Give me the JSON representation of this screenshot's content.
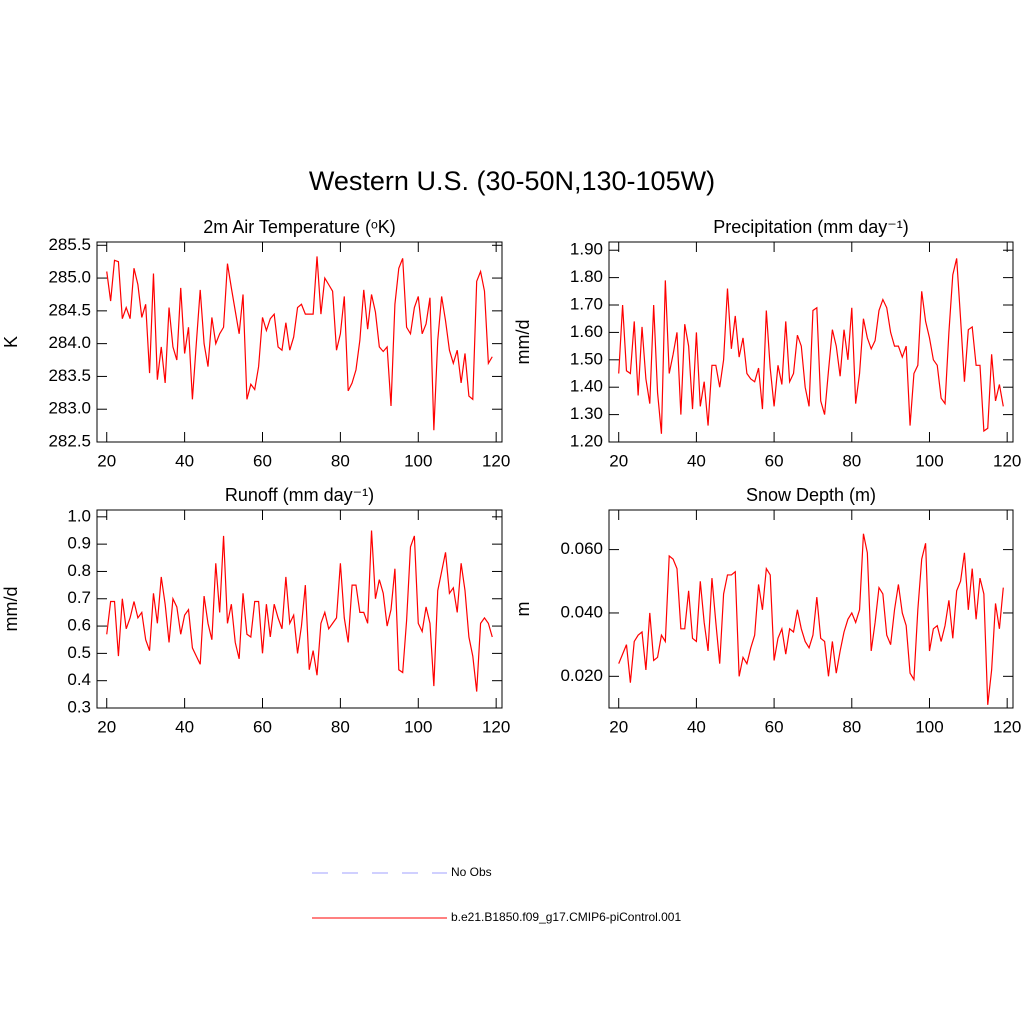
{
  "title": "Western U.S. (30-50N,130-105W)",
  "legend": [
    {
      "name": "No Obs",
      "color": "#a0a0ff",
      "dash": true
    },
    {
      "name": "b.e21.B1850.f09_g17.CMIP6-piControl.001",
      "color": "#ff0000",
      "dash": false
    }
  ],
  "chart_data": [
    {
      "type": "line",
      "title": "2m Air Temperature (ᵒK)",
      "y_label": "K",
      "color": "#ff0000",
      "x": [
        20,
        21,
        22,
        23,
        24,
        25,
        26,
        27,
        28,
        29,
        30,
        31,
        32,
        33,
        34,
        35,
        36,
        37,
        38,
        39,
        40,
        41,
        42,
        43,
        44,
        45,
        46,
        47,
        48,
        49,
        50,
        51,
        52,
        53,
        54,
        55,
        56,
        57,
        58,
        59,
        60,
        61,
        62,
        63,
        64,
        65,
        66,
        67,
        68,
        69,
        70,
        71,
        72,
        73,
        74,
        75,
        76,
        77,
        78,
        79,
        80,
        81,
        82,
        83,
        84,
        85,
        86,
        87,
        88,
        89,
        90,
        91,
        92,
        93,
        94,
        95,
        96,
        97,
        98,
        99,
        100,
        101,
        102,
        103,
        104,
        105,
        106,
        107,
        108,
        109,
        110,
        111,
        112,
        113,
        114,
        115,
        116,
        117,
        118,
        119
      ],
      "values": [
        285.1,
        284.65,
        285.27,
        285.25,
        284.38,
        284.55,
        284.38,
        285.15,
        284.9,
        284.4,
        284.6,
        283.55,
        285.07,
        283.45,
        283.95,
        283.4,
        284.55,
        283.95,
        283.75,
        284.85,
        283.85,
        284.25,
        283.15,
        284.0,
        284.82,
        284.0,
        283.65,
        284.4,
        284.0,
        284.15,
        284.25,
        285.22,
        284.85,
        284.5,
        284.15,
        284.75,
        283.15,
        283.38,
        283.3,
        283.65,
        284.4,
        284.2,
        284.38,
        284.45,
        283.95,
        283.9,
        284.32,
        283.9,
        284.1,
        284.55,
        284.6,
        284.45,
        284.45,
        284.45,
        285.33,
        284.45,
        285.0,
        284.9,
        284.8,
        283.9,
        284.15,
        284.72,
        283.28,
        283.4,
        283.6,
        284.05,
        284.82,
        284.22,
        284.75,
        284.48,
        283.95,
        283.88,
        283.95,
        283.05,
        284.6,
        285.15,
        285.3,
        284.25,
        284.15,
        284.55,
        284.72,
        284.15,
        284.3,
        284.7,
        282.68,
        284.05,
        284.72,
        284.35,
        283.9,
        283.7,
        283.9,
        283.4,
        283.85,
        283.2,
        283.15,
        284.95,
        285.1,
        284.8,
        283.7,
        283.8
      ],
      "xlim": [
        17.5,
        121.5
      ],
      "xticks": [
        20,
        40,
        60,
        80,
        100,
        120
      ],
      "ylim": [
        282.5,
        285.55
      ],
      "yticks": [
        282.5,
        {
          "value": 283,
          "label": "283.0"
        },
        283.5,
        {
          "value": 284,
          "label": "284.0"
        },
        284.5,
        {
          "value": 285,
          "label": "285.0"
        },
        285.5
      ]
    },
    {
      "type": "line",
      "title": "Precipitation (mm day⁻¹)",
      "y_label": "mm/d",
      "color": "#ff0000",
      "x": [
        20,
        21,
        22,
        23,
        24,
        25,
        26,
        27,
        28,
        29,
        30,
        31,
        32,
        33,
        34,
        35,
        36,
        37,
        38,
        39,
        40,
        41,
        42,
        43,
        44,
        45,
        46,
        47,
        48,
        49,
        50,
        51,
        52,
        53,
        54,
        55,
        56,
        57,
        58,
        59,
        60,
        61,
        62,
        63,
        64,
        65,
        66,
        67,
        68,
        69,
        70,
        71,
        72,
        73,
        74,
        75,
        76,
        77,
        78,
        79,
        80,
        81,
        82,
        83,
        84,
        85,
        86,
        87,
        88,
        89,
        90,
        91,
        92,
        93,
        94,
        95,
        96,
        97,
        98,
        99,
        100,
        101,
        102,
        103,
        104,
        105,
        106,
        107,
        108,
        109,
        110,
        111,
        112,
        113,
        114,
        115,
        116,
        117,
        118,
        119
      ],
      "values": [
        1.45,
        1.7,
        1.46,
        1.45,
        1.64,
        1.37,
        1.62,
        1.43,
        1.34,
        1.7,
        1.38,
        1.23,
        1.79,
        1.45,
        1.52,
        1.6,
        1.3,
        1.63,
        1.55,
        1.32,
        1.6,
        1.33,
        1.42,
        1.26,
        1.48,
        1.48,
        1.4,
        1.5,
        1.76,
        1.54,
        1.66,
        1.51,
        1.58,
        1.45,
        1.43,
        1.42,
        1.47,
        1.32,
        1.68,
        1.47,
        1.33,
        1.48,
        1.41,
        1.64,
        1.42,
        1.45,
        1.59,
        1.55,
        1.4,
        1.33,
        1.68,
        1.69,
        1.35,
        1.3,
        1.46,
        1.61,
        1.55,
        1.44,
        1.61,
        1.5,
        1.69,
        1.34,
        1.45,
        1.65,
        1.58,
        1.54,
        1.57,
        1.68,
        1.72,
        1.69,
        1.6,
        1.55,
        1.55,
        1.51,
        1.55,
        1.26,
        1.45,
        1.48,
        1.75,
        1.64,
        1.58,
        1.5,
        1.48,
        1.36,
        1.34,
        1.6,
        1.81,
        1.87,
        1.65,
        1.42,
        1.61,
        1.62,
        1.48,
        1.48,
        1.24,
        1.25,
        1.52,
        1.35,
        1.41,
        1.33
      ],
      "xlim": [
        17.5,
        121.5
      ],
      "xticks": [
        20,
        40,
        60,
        80,
        100,
        120
      ],
      "ylim": [
        1.2,
        1.93
      ],
      "yticks": [
        {
          "value": 1.2,
          "label": "1.20"
        },
        {
          "value": 1.3,
          "label": "1.30"
        },
        {
          "value": 1.4,
          "label": "1.40"
        },
        {
          "value": 1.5,
          "label": "1.50"
        },
        {
          "value": 1.6,
          "label": "1.60"
        },
        {
          "value": 1.7,
          "label": "1.70"
        },
        {
          "value": 1.8,
          "label": "1.80"
        },
        {
          "value": 1.9,
          "label": "1.90"
        }
      ]
    },
    {
      "type": "line",
      "title": "Runoff (mm day⁻¹)",
      "y_label": "mm/d",
      "color": "#ff0000",
      "x": [
        20,
        21,
        22,
        23,
        24,
        25,
        26,
        27,
        28,
        29,
        30,
        31,
        32,
        33,
        34,
        35,
        36,
        37,
        38,
        39,
        40,
        41,
        42,
        43,
        44,
        45,
        46,
        47,
        48,
        49,
        50,
        51,
        52,
        53,
        54,
        55,
        56,
        57,
        58,
        59,
        60,
        61,
        62,
        63,
        64,
        65,
        66,
        67,
        68,
        69,
        70,
        71,
        72,
        73,
        74,
        75,
        76,
        77,
        78,
        79,
        80,
        81,
        82,
        83,
        84,
        85,
        86,
        87,
        88,
        89,
        90,
        91,
        92,
        93,
        94,
        95,
        96,
        97,
        98,
        99,
        100,
        101,
        102,
        103,
        104,
        105,
        106,
        107,
        108,
        109,
        110,
        111,
        112,
        113,
        114,
        115,
        116,
        117,
        118,
        119
      ],
      "values": [
        0.57,
        0.69,
        0.69,
        0.49,
        0.7,
        0.59,
        0.63,
        0.69,
        0.63,
        0.65,
        0.55,
        0.51,
        0.72,
        0.61,
        0.78,
        0.68,
        0.54,
        0.7,
        0.67,
        0.57,
        0.64,
        0.66,
        0.52,
        0.49,
        0.46,
        0.71,
        0.61,
        0.55,
        0.83,
        0.65,
        0.93,
        0.61,
        0.68,
        0.54,
        0.48,
        0.72,
        0.57,
        0.56,
        0.69,
        0.69,
        0.5,
        0.68,
        0.56,
        0.68,
        0.63,
        0.59,
        0.78,
        0.61,
        0.64,
        0.5,
        0.6,
        0.75,
        0.44,
        0.51,
        0.42,
        0.61,
        0.65,
        0.59,
        0.61,
        0.63,
        0.83,
        0.63,
        0.54,
        0.75,
        0.75,
        0.65,
        0.65,
        0.61,
        0.95,
        0.7,
        0.77,
        0.72,
        0.6,
        0.66,
        0.81,
        0.44,
        0.43,
        0.62,
        0.89,
        0.93,
        0.61,
        0.58,
        0.67,
        0.61,
        0.38,
        0.73,
        0.8,
        0.87,
        0.72,
        0.74,
        0.65,
        0.83,
        0.73,
        0.56,
        0.49,
        0.36,
        0.61,
        0.63,
        0.61,
        0.56
      ],
      "xlim": [
        17.5,
        121.5
      ],
      "xticks": [
        20,
        40,
        60,
        80,
        100,
        120
      ],
      "ylim": [
        0.3,
        1.025
      ],
      "yticks": [
        0.3,
        0.4,
        0.5,
        0.6,
        0.7,
        0.8,
        0.9,
        {
          "value": 1,
          "label": "1.0"
        }
      ]
    },
    {
      "type": "line",
      "title": "Snow Depth (m)",
      "y_label": "m",
      "color": "#ff0000",
      "x": [
        20,
        21,
        22,
        23,
        24,
        25,
        26,
        27,
        28,
        29,
        30,
        31,
        32,
        33,
        34,
        35,
        36,
        37,
        38,
        39,
        40,
        41,
        42,
        43,
        44,
        45,
        46,
        47,
        48,
        49,
        50,
        51,
        52,
        53,
        54,
        55,
        56,
        57,
        58,
        59,
        60,
        61,
        62,
        63,
        64,
        65,
        66,
        67,
        68,
        69,
        70,
        71,
        72,
        73,
        74,
        75,
        76,
        77,
        78,
        79,
        80,
        81,
        82,
        83,
        84,
        85,
        86,
        87,
        88,
        89,
        90,
        91,
        92,
        93,
        94,
        95,
        96,
        97,
        98,
        99,
        100,
        101,
        102,
        103,
        104,
        105,
        106,
        107,
        108,
        109,
        110,
        111,
        112,
        113,
        114,
        115,
        116,
        117,
        118,
        119
      ],
      "values": [
        0.024,
        0.027,
        0.03,
        0.018,
        0.031,
        0.033,
        0.034,
        0.022,
        0.04,
        0.025,
        0.026,
        0.033,
        0.031,
        0.058,
        0.057,
        0.054,
        0.035,
        0.035,
        0.047,
        0.032,
        0.031,
        0.05,
        0.037,
        0.028,
        0.051,
        0.037,
        0.024,
        0.046,
        0.052,
        0.052,
        0.053,
        0.02,
        0.026,
        0.024,
        0.029,
        0.033,
        0.049,
        0.041,
        0.054,
        0.052,
        0.025,
        0.032,
        0.035,
        0.027,
        0.035,
        0.034,
        0.041,
        0.035,
        0.031,
        0.029,
        0.033,
        0.045,
        0.032,
        0.031,
        0.02,
        0.031,
        0.021,
        0.028,
        0.034,
        0.038,
        0.04,
        0.037,
        0.041,
        0.065,
        0.059,
        0.028,
        0.037,
        0.048,
        0.046,
        0.033,
        0.03,
        0.041,
        0.049,
        0.04,
        0.036,
        0.021,
        0.019,
        0.041,
        0.057,
        0.062,
        0.028,
        0.035,
        0.036,
        0.031,
        0.036,
        0.044,
        0.032,
        0.047,
        0.05,
        0.059,
        0.041,
        0.054,
        0.038,
        0.051,
        0.046,
        0.011,
        0.022,
        0.043,
        0.035,
        0.048
      ],
      "xlim": [
        17.5,
        121.5
      ],
      "xticks": [
        20,
        40,
        60,
        80,
        100,
        120
      ],
      "ylim": [
        0.01,
        0.0725
      ],
      "yticks": [
        {
          "value": 0.02,
          "label": "0.020"
        },
        {
          "value": 0.04,
          "label": "0.040"
        },
        {
          "value": 0.06,
          "label": "0.060"
        }
      ]
    }
  ]
}
